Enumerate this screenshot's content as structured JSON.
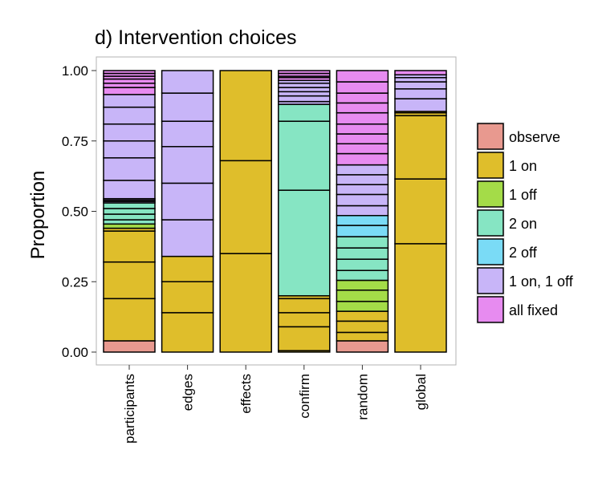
{
  "chart_data": {
    "type": "bar",
    "stacked": true,
    "title": "d) Intervention choices",
    "xlabel": "",
    "ylabel": "Proportion",
    "ylim": [
      0,
      1
    ],
    "yticks": [
      "0.00",
      "0.25",
      "0.50",
      "0.75",
      "1.00"
    ],
    "grid": false,
    "legend_position": "right",
    "categories": [
      "participants",
      "edges",
      "effects",
      "confirm",
      "random",
      "global"
    ],
    "legend": [
      {
        "name": "observe",
        "color": "#E8998F"
      },
      {
        "name": "1 on",
        "color": "#DFBE2B"
      },
      {
        "name": "1 off",
        "color": "#A4DC48"
      },
      {
        "name": "2 on",
        "color": "#86E5C3"
      },
      {
        "name": "2 off",
        "color": "#7ADBF6"
      },
      {
        "name": "1 on, 1 off",
        "color": "#C8B5F8"
      },
      {
        "name": "all fixed",
        "color": "#E78BF0"
      }
    ],
    "bars": [
      {
        "category": "participants",
        "segments": [
          {
            "type": "observe",
            "from": 0.0,
            "to": 0.04
          },
          {
            "type": "1 on",
            "from": 0.04,
            "to": 0.19
          },
          {
            "type": "1 on",
            "from": 0.19,
            "to": 0.32
          },
          {
            "type": "1 on",
            "from": 0.32,
            "to": 0.43
          },
          {
            "type": "1 on",
            "from": 0.43,
            "to": 0.44
          },
          {
            "type": "1 off",
            "from": 0.44,
            "to": 0.455
          },
          {
            "type": "2 on",
            "from": 0.455,
            "to": 0.47
          },
          {
            "type": "2 on",
            "from": 0.47,
            "to": 0.49
          },
          {
            "type": "2 on",
            "from": 0.49,
            "to": 0.51
          },
          {
            "type": "2 on",
            "from": 0.51,
            "to": 0.53
          },
          {
            "type": "1 on, 1 off",
            "from": 0.53,
            "to": 0.535
          },
          {
            "type": "1 on, 1 off",
            "from": 0.535,
            "to": 0.54
          },
          {
            "type": "1 on, 1 off",
            "from": 0.54,
            "to": 0.545
          },
          {
            "type": "1 on, 1 off",
            "from": 0.545,
            "to": 0.61
          },
          {
            "type": "1 on, 1 off",
            "from": 0.61,
            "to": 0.69
          },
          {
            "type": "1 on, 1 off",
            "from": 0.69,
            "to": 0.75
          },
          {
            "type": "1 on, 1 off",
            "from": 0.75,
            "to": 0.81
          },
          {
            "type": "1 on, 1 off",
            "from": 0.81,
            "to": 0.87
          },
          {
            "type": "1 on, 1 off",
            "from": 0.87,
            "to": 0.915
          },
          {
            "type": "all fixed",
            "from": 0.915,
            "to": 0.94
          },
          {
            "type": "all fixed",
            "from": 0.94,
            "to": 0.955
          },
          {
            "type": "all fixed",
            "from": 0.955,
            "to": 0.97
          },
          {
            "type": "all fixed",
            "from": 0.97,
            "to": 0.98
          },
          {
            "type": "all fixed",
            "from": 0.98,
            "to": 0.99
          },
          {
            "type": "all fixed",
            "from": 0.99,
            "to": 1.0
          }
        ]
      },
      {
        "category": "edges",
        "segments": [
          {
            "type": "1 on",
            "from": 0.0,
            "to": 0.14
          },
          {
            "type": "1 on",
            "from": 0.14,
            "to": 0.25
          },
          {
            "type": "1 on",
            "from": 0.25,
            "to": 0.34
          },
          {
            "type": "1 on, 1 off",
            "from": 0.34,
            "to": 0.47
          },
          {
            "type": "1 on, 1 off",
            "from": 0.47,
            "to": 0.6
          },
          {
            "type": "1 on, 1 off",
            "from": 0.6,
            "to": 0.73
          },
          {
            "type": "1 on, 1 off",
            "from": 0.73,
            "to": 0.82
          },
          {
            "type": "1 on, 1 off",
            "from": 0.82,
            "to": 0.92
          },
          {
            "type": "1 on, 1 off",
            "from": 0.92,
            "to": 1.0
          }
        ]
      },
      {
        "category": "effects",
        "segments": [
          {
            "type": "1 on",
            "from": 0.0,
            "to": 0.35
          },
          {
            "type": "1 on",
            "from": 0.35,
            "to": 0.68
          },
          {
            "type": "1 on",
            "from": 0.68,
            "to": 1.0
          }
        ]
      },
      {
        "category": "confirm",
        "segments": [
          {
            "type": "1 on",
            "from": 0.0,
            "to": 0.005
          },
          {
            "type": "1 on",
            "from": 0.005,
            "to": 0.09
          },
          {
            "type": "1 on",
            "from": 0.09,
            "to": 0.14
          },
          {
            "type": "1 on",
            "from": 0.14,
            "to": 0.19
          },
          {
            "type": "1 on",
            "from": 0.19,
            "to": 0.2
          },
          {
            "type": "2 on",
            "from": 0.2,
            "to": 0.575
          },
          {
            "type": "2 on",
            "from": 0.575,
            "to": 0.82
          },
          {
            "type": "2 on",
            "from": 0.82,
            "to": 0.88
          },
          {
            "type": "1 on, 1 off",
            "from": 0.88,
            "to": 0.89
          },
          {
            "type": "1 on, 1 off",
            "from": 0.89,
            "to": 0.91
          },
          {
            "type": "1 on, 1 off",
            "from": 0.91,
            "to": 0.925
          },
          {
            "type": "1 on, 1 off",
            "from": 0.925,
            "to": 0.94
          },
          {
            "type": "1 on, 1 off",
            "from": 0.94,
            "to": 0.955
          },
          {
            "type": "1 on, 1 off",
            "from": 0.955,
            "to": 0.965
          },
          {
            "type": "all fixed",
            "from": 0.965,
            "to": 0.975
          },
          {
            "type": "all fixed",
            "from": 0.975,
            "to": 0.98
          },
          {
            "type": "all fixed",
            "from": 0.98,
            "to": 0.99
          },
          {
            "type": "all fixed",
            "from": 0.99,
            "to": 1.0
          }
        ]
      },
      {
        "category": "random",
        "segments": [
          {
            "type": "observe",
            "from": 0.0,
            "to": 0.04
          },
          {
            "type": "1 on",
            "from": 0.04,
            "to": 0.07
          },
          {
            "type": "1 on",
            "from": 0.07,
            "to": 0.11
          },
          {
            "type": "1 on",
            "from": 0.11,
            "to": 0.145
          },
          {
            "type": "1 off",
            "from": 0.145,
            "to": 0.18
          },
          {
            "type": "1 off",
            "from": 0.18,
            "to": 0.22
          },
          {
            "type": "1 off",
            "from": 0.22,
            "to": 0.255
          },
          {
            "type": "2 on",
            "from": 0.255,
            "to": 0.29
          },
          {
            "type": "2 on",
            "from": 0.29,
            "to": 0.33
          },
          {
            "type": "2 on",
            "from": 0.33,
            "to": 0.37
          },
          {
            "type": "2 on",
            "from": 0.37,
            "to": 0.41
          },
          {
            "type": "2 off",
            "from": 0.41,
            "to": 0.45
          },
          {
            "type": "2 off",
            "from": 0.45,
            "to": 0.485
          },
          {
            "type": "1 on, 1 off",
            "from": 0.485,
            "to": 0.52
          },
          {
            "type": "1 on, 1 off",
            "from": 0.52,
            "to": 0.56
          },
          {
            "type": "1 on, 1 off",
            "from": 0.56,
            "to": 0.595
          },
          {
            "type": "1 on, 1 off",
            "from": 0.595,
            "to": 0.63
          },
          {
            "type": "1 on, 1 off",
            "from": 0.63,
            "to": 0.665
          },
          {
            "type": "all fixed",
            "from": 0.665,
            "to": 0.705
          },
          {
            "type": "all fixed",
            "from": 0.705,
            "to": 0.74
          },
          {
            "type": "all fixed",
            "from": 0.74,
            "to": 0.775
          },
          {
            "type": "all fixed",
            "from": 0.775,
            "to": 0.81
          },
          {
            "type": "all fixed",
            "from": 0.81,
            "to": 0.85
          },
          {
            "type": "all fixed",
            "from": 0.85,
            "to": 0.885
          },
          {
            "type": "all fixed",
            "from": 0.885,
            "to": 0.92
          },
          {
            "type": "all fixed",
            "from": 0.92,
            "to": 0.96
          },
          {
            "type": "all fixed",
            "from": 0.96,
            "to": 1.0
          }
        ]
      },
      {
        "category": "global",
        "segments": [
          {
            "type": "1 on",
            "from": 0.0,
            "to": 0.385
          },
          {
            "type": "1 on",
            "from": 0.385,
            "to": 0.615
          },
          {
            "type": "1 on",
            "from": 0.615,
            "to": 0.84
          },
          {
            "type": "1 on",
            "from": 0.84,
            "to": 0.85
          },
          {
            "type": "1 on",
            "from": 0.85,
            "to": 0.855
          },
          {
            "type": "1 on, 1 off",
            "from": 0.855,
            "to": 0.9
          },
          {
            "type": "1 on, 1 off",
            "from": 0.9,
            "to": 0.935
          },
          {
            "type": "1 on, 1 off",
            "from": 0.935,
            "to": 0.96
          },
          {
            "type": "1 on, 1 off",
            "from": 0.96,
            "to": 0.975
          },
          {
            "type": "1 on, 1 off",
            "from": 0.975,
            "to": 0.985
          },
          {
            "type": "all fixed",
            "from": 0.985,
            "to": 1.0
          }
        ]
      }
    ]
  }
}
